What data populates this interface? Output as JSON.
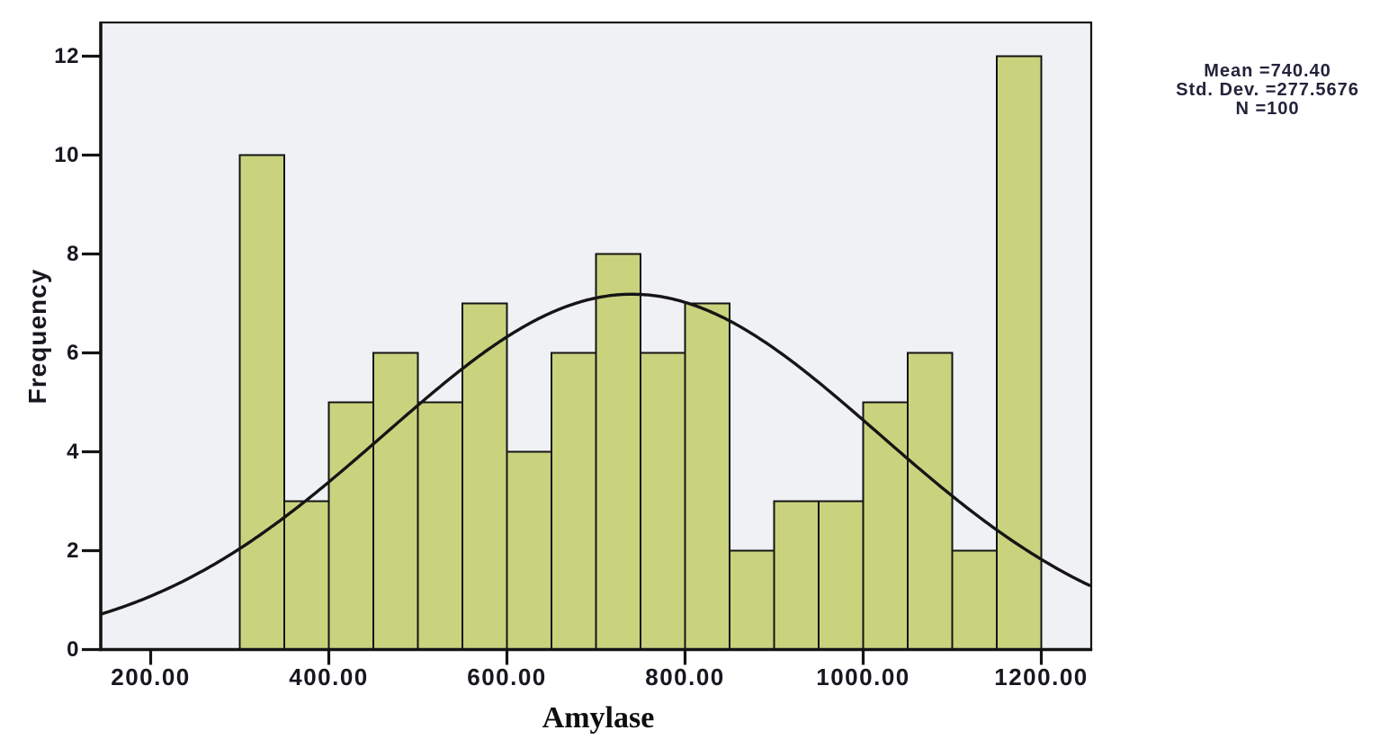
{
  "figure": {
    "stats_box": {
      "mean_line": "Mean =740.40",
      "std_dev_line": "Std. Dev. =277.5676",
      "n_line": "N =100"
    }
  },
  "chart_data": {
    "type": "bar",
    "subtype": "histogram-with-normal-curve",
    "title": "",
    "xlabel": "Amylase",
    "ylabel": "Frequency",
    "bin_width": 50,
    "bin_edges": [
      300,
      350,
      400,
      450,
      500,
      550,
      600,
      650,
      700,
      750,
      800,
      850,
      900,
      950,
      1000,
      1050,
      1100,
      1150,
      1200
    ],
    "counts": [
      10,
      3,
      5,
      6,
      5,
      7,
      4,
      6,
      8,
      6,
      7,
      2,
      3,
      3,
      5,
      6,
      2,
      12
    ],
    "x_ticks": [
      200,
      400,
      600,
      800,
      1000,
      1200
    ],
    "x_tick_labels": [
      "200.00",
      "400.00",
      "600.00",
      "800.00",
      "1000.00",
      "1200.00"
    ],
    "y_ticks": [
      0,
      2,
      4,
      6,
      8,
      10,
      12
    ],
    "y_tick_labels": [
      "0",
      "2",
      "4",
      "6",
      "8",
      "10",
      "12"
    ],
    "xlim": [
      144,
      1256
    ],
    "ylim": [
      0,
      12.68
    ],
    "grid": false,
    "legend_position": "none",
    "normal_curve": {
      "mean": 740.4,
      "std_dev": 277.567,
      "n": 100
    },
    "colors": {
      "bar_fill": "#c9d37e",
      "bar_stroke": "#141414",
      "curve": "#151515",
      "plot_bg": "#eff1f4",
      "frame": "#141414",
      "text": "#17171f"
    }
  }
}
